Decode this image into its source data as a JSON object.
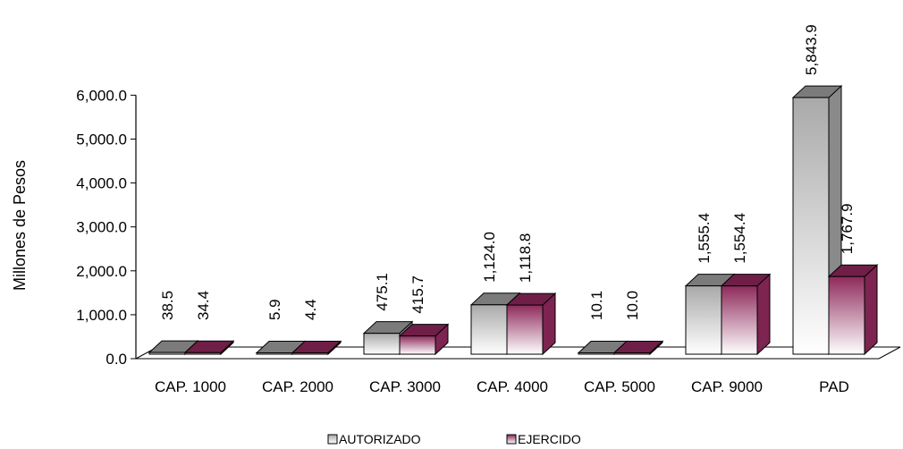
{
  "chart_data": {
    "type": "bar",
    "ylabel": "Millones de Pesos",
    "ylim": [
      0,
      6000
    ],
    "yticks": [
      "0.0",
      "1,000.0",
      "2,000.0",
      "3,000.0",
      "4,000.0",
      "5,000.0",
      "6,000.0"
    ],
    "categories": [
      "CAP. 1000",
      "CAP. 2000",
      "CAP. 3000",
      "CAP. 4000",
      "CAP. 5000",
      "CAP. 9000",
      "PAD"
    ],
    "series": [
      {
        "name": "AUTORIZADO",
        "values": [
          38.5,
          5.9,
          475.1,
          1124.0,
          10.1,
          1555.4,
          5843.9
        ],
        "labels": [
          "38.5",
          "5.9",
          "475.1",
          "1,124.0",
          "10.1",
          "1,555.4",
          "5,843.9"
        ],
        "color_front_top": "#a9a9a9",
        "color_front_bottom": "#ffffff",
        "color_top": "#7b7b7b",
        "color_side": "#8a8a8a"
      },
      {
        "name": "EJERCIDO",
        "values": [
          34.4,
          4.4,
          415.7,
          1118.8,
          10.0,
          1554.4,
          1767.9
        ],
        "labels": [
          "34.4",
          "4.4",
          "415.7",
          "1,118.8",
          "10.0",
          "1,554.4",
          "1,767.9"
        ],
        "color_front_top": "#8e2a5b",
        "color_front_bottom": "#ffffff",
        "color_top": "#6f1f47",
        "color_side": "#7d2451"
      }
    ],
    "grid": false,
    "legend_position": "bottom-center",
    "style": "3d-clustered-column"
  }
}
